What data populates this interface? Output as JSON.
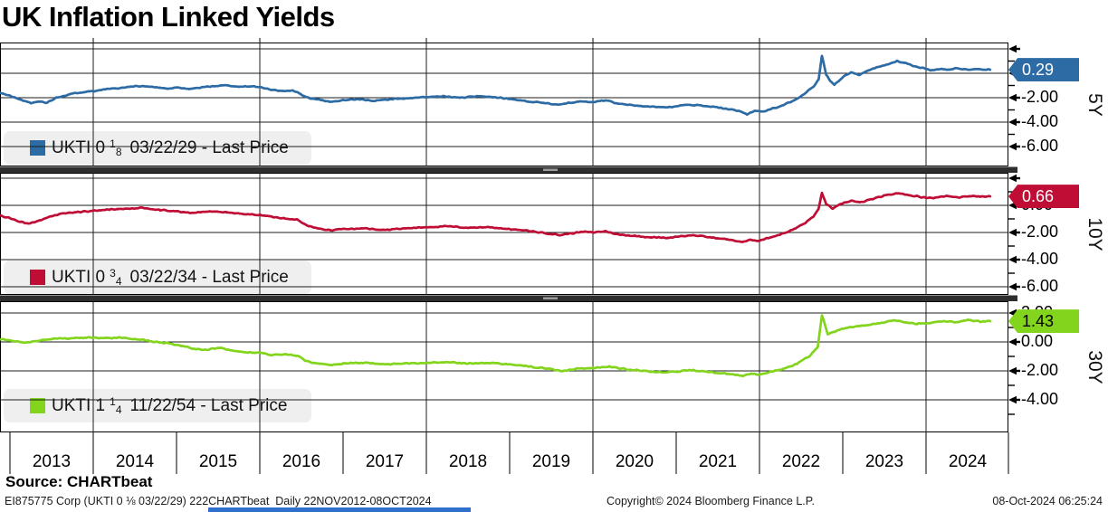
{
  "title": "UK Inflation Linked Yields",
  "source_label": "Source: CHARTbeat",
  "footer": {
    "left": "EI875775 Corp (UKTI 0 ⅛  03/22/29) 222CHARTbeat  Daily 22NOV2012-08OCT2024",
    "center": "Copyright© 2024 Bloomberg Finance L.P.",
    "right": "08-Oct-2024 06:25:24"
  },
  "x_axis_years": [
    "2013",
    "2014",
    "2015",
    "2016",
    "2017",
    "2018",
    "2019",
    "2020",
    "2021",
    "2022",
    "2023",
    "2024"
  ],
  "chart_data": {
    "type": "line",
    "title": "UK Inflation Linked Yields",
    "x_unit": "year",
    "x_range": [
      2012.88,
      2025.0
    ],
    "date_range_label": "22NOV2012-08OCT2024",
    "grid": "on",
    "panels": [
      {
        "axis_label": "5Y",
        "series_name": "UKTI 0 1/8 03/22/29 - Last Price",
        "legend": {
          "pre": "UKTI 0",
          "num": "1",
          "den": "8",
          "post": "03/22/29 - Last Price"
        },
        "last_price": 0.29,
        "last_price_label": "0.29",
        "color": "#2d6ba5",
        "tag_text": "#ffffff",
        "y_gridlines": [
          2,
          0,
          -2,
          -4,
          -6
        ],
        "tick_labels": [
          {
            "v": 0,
            "t": "0.00"
          },
          {
            "v": -2,
            "t": "-2.00"
          },
          {
            "v": -4,
            "t": "-4.00"
          },
          {
            "v": -6,
            "t": "-6.00"
          }
        ],
        "points": [
          [
            2012.88,
            -1.6
          ],
          [
            2013.0,
            -1.85
          ],
          [
            2013.1,
            -2.1
          ],
          [
            2013.25,
            -2.45
          ],
          [
            2013.35,
            -2.3
          ],
          [
            2013.45,
            -2.4
          ],
          [
            2013.55,
            -2.0
          ],
          [
            2013.7,
            -1.75
          ],
          [
            2013.85,
            -1.55
          ],
          [
            2014.0,
            -1.45
          ],
          [
            2014.15,
            -1.3
          ],
          [
            2014.3,
            -1.25
          ],
          [
            2014.45,
            -1.1
          ],
          [
            2014.6,
            -1.05
          ],
          [
            2014.75,
            -1.15
          ],
          [
            2014.9,
            -1.25
          ],
          [
            2015.0,
            -1.15
          ],
          [
            2015.15,
            -1.3
          ],
          [
            2015.3,
            -1.15
          ],
          [
            2015.45,
            -1.05
          ],
          [
            2015.6,
            -1.0
          ],
          [
            2015.75,
            -1.1
          ],
          [
            2015.9,
            -1.05
          ],
          [
            2016.0,
            -1.15
          ],
          [
            2016.1,
            -1.3
          ],
          [
            2016.25,
            -1.45
          ],
          [
            2016.4,
            -1.4
          ],
          [
            2016.5,
            -1.75
          ],
          [
            2016.6,
            -2.05
          ],
          [
            2016.75,
            -2.2
          ],
          [
            2016.85,
            -2.35
          ],
          [
            2017.0,
            -2.2
          ],
          [
            2017.2,
            -2.15
          ],
          [
            2017.4,
            -2.25
          ],
          [
            2017.6,
            -2.1
          ],
          [
            2017.8,
            -2.05
          ],
          [
            2018.0,
            -1.95
          ],
          [
            2018.2,
            -1.9
          ],
          [
            2018.4,
            -2.0
          ],
          [
            2018.6,
            -1.9
          ],
          [
            2018.8,
            -1.95
          ],
          [
            2019.0,
            -2.1
          ],
          [
            2019.2,
            -2.3
          ],
          [
            2019.4,
            -2.4
          ],
          [
            2019.55,
            -2.55
          ],
          [
            2019.7,
            -2.45
          ],
          [
            2019.85,
            -2.3
          ],
          [
            2020.0,
            -2.35
          ],
          [
            2020.15,
            -2.2
          ],
          [
            2020.3,
            -2.5
          ],
          [
            2020.45,
            -2.6
          ],
          [
            2020.6,
            -2.7
          ],
          [
            2020.75,
            -2.75
          ],
          [
            2020.9,
            -2.8
          ],
          [
            2021.0,
            -2.7
          ],
          [
            2021.15,
            -2.55
          ],
          [
            2021.3,
            -2.65
          ],
          [
            2021.45,
            -2.75
          ],
          [
            2021.6,
            -2.9
          ],
          [
            2021.75,
            -3.1
          ],
          [
            2021.85,
            -3.35
          ],
          [
            2021.95,
            -3.05
          ],
          [
            2022.05,
            -3.15
          ],
          [
            2022.15,
            -2.9
          ],
          [
            2022.25,
            -2.7
          ],
          [
            2022.35,
            -2.4
          ],
          [
            2022.45,
            -2.1
          ],
          [
            2022.55,
            -1.6
          ],
          [
            2022.65,
            -1.1
          ],
          [
            2022.71,
            -0.5
          ],
          [
            2022.75,
            1.45
          ],
          [
            2022.8,
            -0.1
          ],
          [
            2022.85,
            -0.6
          ],
          [
            2022.9,
            -0.95
          ],
          [
            2023.0,
            -0.3
          ],
          [
            2023.1,
            0.1
          ],
          [
            2023.2,
            -0.15
          ],
          [
            2023.3,
            0.2
          ],
          [
            2023.4,
            0.45
          ],
          [
            2023.55,
            0.75
          ],
          [
            2023.65,
            1.0
          ],
          [
            2023.75,
            0.85
          ],
          [
            2023.85,
            0.6
          ],
          [
            2023.95,
            0.45
          ],
          [
            2024.05,
            0.25
          ],
          [
            2024.15,
            0.35
          ],
          [
            2024.25,
            0.3
          ],
          [
            2024.35,
            0.4
          ],
          [
            2024.45,
            0.35
          ],
          [
            2024.55,
            0.3
          ],
          [
            2024.65,
            0.35
          ],
          [
            2024.77,
            0.29
          ]
        ]
      },
      {
        "axis_label": "10Y",
        "series_name": "UKTI 0 3/4 03/22/34 - Last Price",
        "legend": {
          "pre": "UKTI 0",
          "num": "3",
          "den": "4",
          "post": "03/22/34 - Last Price"
        },
        "last_price": 0.66,
        "last_price_label": "0.66",
        "color": "#bf0d35",
        "tag_text": "#ffffff",
        "y_gridlines": [
          2,
          0,
          -2,
          -4,
          -6
        ],
        "tick_labels": [
          {
            "v": 0,
            "t": "0.00"
          },
          {
            "v": -2,
            "t": "-2.00"
          },
          {
            "v": -4,
            "t": "-4.00"
          },
          {
            "v": -6,
            "t": "-6.00"
          }
        ],
        "points": [
          [
            2012.88,
            -0.75
          ],
          [
            2013.0,
            -0.95
          ],
          [
            2013.1,
            -1.15
          ],
          [
            2013.22,
            -1.35
          ],
          [
            2013.35,
            -1.15
          ],
          [
            2013.5,
            -0.8
          ],
          [
            2013.65,
            -0.6
          ],
          [
            2013.8,
            -0.5
          ],
          [
            2014.0,
            -0.4
          ],
          [
            2014.2,
            -0.3
          ],
          [
            2014.4,
            -0.25
          ],
          [
            2014.6,
            -0.2
          ],
          [
            2014.8,
            -0.35
          ],
          [
            2015.0,
            -0.45
          ],
          [
            2015.2,
            -0.55
          ],
          [
            2015.4,
            -0.45
          ],
          [
            2015.6,
            -0.5
          ],
          [
            2015.8,
            -0.65
          ],
          [
            2016.0,
            -0.7
          ],
          [
            2016.15,
            -0.85
          ],
          [
            2016.3,
            -0.95
          ],
          [
            2016.45,
            -1.05
          ],
          [
            2016.55,
            -1.45
          ],
          [
            2016.7,
            -1.7
          ],
          [
            2016.85,
            -1.85
          ],
          [
            2017.0,
            -1.75
          ],
          [
            2017.25,
            -1.7
          ],
          [
            2017.5,
            -1.8
          ],
          [
            2017.75,
            -1.7
          ],
          [
            2018.0,
            -1.6
          ],
          [
            2018.25,
            -1.55
          ],
          [
            2018.5,
            -1.65
          ],
          [
            2018.75,
            -1.6
          ],
          [
            2019.0,
            -1.75
          ],
          [
            2019.25,
            -1.9
          ],
          [
            2019.5,
            -2.1
          ],
          [
            2019.6,
            -2.2
          ],
          [
            2019.75,
            -2.05
          ],
          [
            2019.9,
            -1.95
          ],
          [
            2020.0,
            -2.0
          ],
          [
            2020.15,
            -1.9
          ],
          [
            2020.3,
            -2.15
          ],
          [
            2020.5,
            -2.25
          ],
          [
            2020.7,
            -2.35
          ],
          [
            2020.9,
            -2.4
          ],
          [
            2021.0,
            -2.3
          ],
          [
            2021.2,
            -2.2
          ],
          [
            2021.4,
            -2.35
          ],
          [
            2021.6,
            -2.5
          ],
          [
            2021.8,
            -2.7
          ],
          [
            2021.9,
            -2.55
          ],
          [
            2022.0,
            -2.6
          ],
          [
            2022.1,
            -2.4
          ],
          [
            2022.25,
            -2.15
          ],
          [
            2022.4,
            -1.8
          ],
          [
            2022.55,
            -1.3
          ],
          [
            2022.65,
            -0.8
          ],
          [
            2022.71,
            -0.3
          ],
          [
            2022.75,
            0.95
          ],
          [
            2022.8,
            0.1
          ],
          [
            2022.88,
            -0.25
          ],
          [
            2023.0,
            0.15
          ],
          [
            2023.1,
            0.35
          ],
          [
            2023.2,
            0.2
          ],
          [
            2023.35,
            0.45
          ],
          [
            2023.5,
            0.7
          ],
          [
            2023.65,
            0.9
          ],
          [
            2023.8,
            0.75
          ],
          [
            2023.95,
            0.6
          ],
          [
            2024.1,
            0.55
          ],
          [
            2024.25,
            0.7
          ],
          [
            2024.4,
            0.6
          ],
          [
            2024.55,
            0.7
          ],
          [
            2024.65,
            0.65
          ],
          [
            2024.77,
            0.66
          ]
        ]
      },
      {
        "axis_label": "30Y",
        "series_name": "UKTI 1 1/4 11/22/54 - Last Price",
        "legend": {
          "pre": "UKTI 1",
          "num": "1",
          "den": "4",
          "post": "11/22/54 - Last Price"
        },
        "last_price": 1.43,
        "last_price_label": "1.43",
        "color": "#82d41c",
        "tag_text": "#000000",
        "y_gridlines": [
          2,
          0,
          -2,
          -4
        ],
        "tick_labels": [
          {
            "v": 2,
            "t": "2.00"
          },
          {
            "v": 0,
            "t": "0.00"
          },
          {
            "v": -2,
            "t": "-2.00"
          },
          {
            "v": -4,
            "t": "-4.00"
          }
        ],
        "points": [
          [
            2012.88,
            0.2
          ],
          [
            2013.05,
            0.05
          ],
          [
            2013.2,
            -0.05
          ],
          [
            2013.35,
            0.1
          ],
          [
            2013.5,
            0.2
          ],
          [
            2013.7,
            0.25
          ],
          [
            2013.9,
            0.3
          ],
          [
            2014.1,
            0.25
          ],
          [
            2014.3,
            0.3
          ],
          [
            2014.5,
            0.2
          ],
          [
            2014.7,
            0.05
          ],
          [
            2014.9,
            -0.1
          ],
          [
            2015.05,
            -0.25
          ],
          [
            2015.2,
            -0.45
          ],
          [
            2015.35,
            -0.55
          ],
          [
            2015.5,
            -0.4
          ],
          [
            2015.65,
            -0.55
          ],
          [
            2015.8,
            -0.7
          ],
          [
            2016.0,
            -0.75
          ],
          [
            2016.15,
            -0.9
          ],
          [
            2016.3,
            -0.85
          ],
          [
            2016.45,
            -0.95
          ],
          [
            2016.55,
            -1.3
          ],
          [
            2016.7,
            -1.5
          ],
          [
            2016.85,
            -1.6
          ],
          [
            2017.0,
            -1.5
          ],
          [
            2017.25,
            -1.45
          ],
          [
            2017.5,
            -1.55
          ],
          [
            2017.75,
            -1.5
          ],
          [
            2018.0,
            -1.45
          ],
          [
            2018.25,
            -1.4
          ],
          [
            2018.5,
            -1.5
          ],
          [
            2018.75,
            -1.45
          ],
          [
            2019.0,
            -1.55
          ],
          [
            2019.25,
            -1.7
          ],
          [
            2019.5,
            -1.9
          ],
          [
            2019.65,
            -2.0
          ],
          [
            2019.8,
            -1.85
          ],
          [
            2020.0,
            -1.8
          ],
          [
            2020.2,
            -1.7
          ],
          [
            2020.4,
            -1.9
          ],
          [
            2020.6,
            -2.0
          ],
          [
            2020.8,
            -2.1
          ],
          [
            2021.0,
            -2.05
          ],
          [
            2021.2,
            -1.95
          ],
          [
            2021.4,
            -2.1
          ],
          [
            2021.6,
            -2.2
          ],
          [
            2021.8,
            -2.35
          ],
          [
            2021.9,
            -2.2
          ],
          [
            2022.0,
            -2.25
          ],
          [
            2022.15,
            -2.05
          ],
          [
            2022.3,
            -1.85
          ],
          [
            2022.45,
            -1.5
          ],
          [
            2022.6,
            -1.0
          ],
          [
            2022.7,
            -0.35
          ],
          [
            2022.75,
            1.85
          ],
          [
            2022.82,
            0.55
          ],
          [
            2022.9,
            0.7
          ],
          [
            2023.0,
            0.9
          ],
          [
            2023.15,
            1.05
          ],
          [
            2023.3,
            1.15
          ],
          [
            2023.45,
            1.3
          ],
          [
            2023.6,
            1.5
          ],
          [
            2023.75,
            1.35
          ],
          [
            2023.9,
            1.25
          ],
          [
            2024.05,
            1.3
          ],
          [
            2024.2,
            1.45
          ],
          [
            2024.35,
            1.35
          ],
          [
            2024.5,
            1.5
          ],
          [
            2024.65,
            1.4
          ],
          [
            2024.77,
            1.43
          ]
        ]
      }
    ]
  }
}
